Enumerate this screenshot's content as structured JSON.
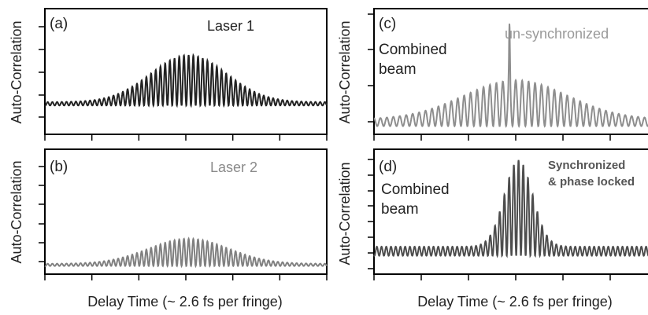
{
  "figure": {
    "left_xlabel": "Delay Time (~ 2.6 fs per fringe)",
    "right_xlabel": "Delay Time (~ 2.6 fs per fringe)"
  },
  "chart_data": [
    {
      "type": "line",
      "panel_label": "(a)",
      "title": "Laser 1",
      "extra_label": "",
      "xlabel": "",
      "ylabel": "Auto-Correlation",
      "colors": {
        "trace": "#222222",
        "title": "#222222"
      },
      "signal": {
        "baseline": 0.21,
        "envelope_peak": 0.44,
        "envelope_tail": 0.03,
        "center": 0.51,
        "width": 0.19,
        "fringes": 60,
        "spike": 0
      }
    },
    {
      "type": "line",
      "panel_label": "(b)",
      "title": "Laser 2",
      "extra_label": "",
      "xlabel": "",
      "ylabel": "Auto-Correlation",
      "colors": {
        "trace": "#808080",
        "title": "#8a8a8a"
      },
      "signal": {
        "baseline": 0.03,
        "envelope_peak": 0.24,
        "envelope_tail": 0.02,
        "center": 0.51,
        "width": 0.2,
        "fringes": 60,
        "spike": 0
      }
    },
    {
      "type": "line",
      "panel_label": "(c)",
      "title": "un-synchronized",
      "extra_label": "Combined beam",
      "xlabel": "",
      "ylabel": "Auto-Correlation",
      "colors": {
        "trace": "#8e8e8e",
        "title": "#9a9a9a"
      },
      "signal": {
        "baseline": 0.03,
        "envelope_peak": 0.4,
        "envelope_tail": 0.06,
        "center": 0.5,
        "width": 0.26,
        "fringes": 44,
        "spike": 0.5
      }
    },
    {
      "type": "line",
      "panel_label": "(d)",
      "title": "Synchronized & phase locked",
      "extra_label": "Combined beam",
      "xlabel": "",
      "ylabel": "Auto-Correlation",
      "colors": {
        "trace": "#4d4d4d",
        "title": "#555555"
      },
      "signal": {
        "baseline": 0.12,
        "envelope_peak": 0.84,
        "envelope_tail": 0.08,
        "center": 0.51,
        "width": 0.07,
        "fringes": 60,
        "spike": 0
      }
    }
  ]
}
